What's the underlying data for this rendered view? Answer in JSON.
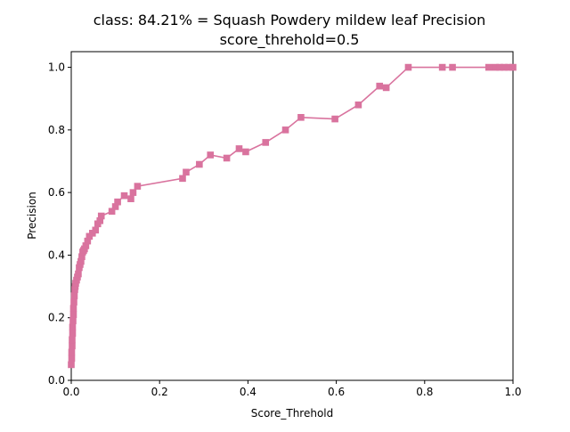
{
  "chart_data": {
    "type": "line",
    "title": "class: 84.21% = Squash Powdery mildew leaf Precision",
    "subtitle": "score_threhold=0.5",
    "xlabel": "Score_Threhold",
    "ylabel": "Precision",
    "xlim": [
      0.0,
      1.0
    ],
    "ylim": [
      0.0,
      1.05
    ],
    "xticks": [
      "0.0",
      "0.2",
      "0.4",
      "0.6",
      "0.8",
      "1.0"
    ],
    "yticks": [
      "0.0",
      "0.2",
      "0.4",
      "0.6",
      "0.8",
      "1.0"
    ],
    "grid": false,
    "legend": false,
    "series": [
      {
        "color": "#d9739e",
        "marker": "square",
        "points": [
          [
            0.0,
            0.05
          ],
          [
            0.001,
            0.07
          ],
          [
            0.001,
            0.09
          ],
          [
            0.002,
            0.11
          ],
          [
            0.002,
            0.13
          ],
          [
            0.003,
            0.15
          ],
          [
            0.003,
            0.17
          ],
          [
            0.004,
            0.19
          ],
          [
            0.005,
            0.21
          ],
          [
            0.005,
            0.23
          ],
          [
            0.006,
            0.25
          ],
          [
            0.007,
            0.27
          ],
          [
            0.008,
            0.29
          ],
          [
            0.009,
            0.3
          ],
          [
            0.01,
            0.31
          ],
          [
            0.012,
            0.32
          ],
          [
            0.014,
            0.33
          ],
          [
            0.016,
            0.34
          ],
          [
            0.018,
            0.36
          ],
          [
            0.02,
            0.37
          ],
          [
            0.022,
            0.38
          ],
          [
            0.024,
            0.395
          ],
          [
            0.026,
            0.41
          ],
          [
            0.028,
            0.415
          ],
          [
            0.03,
            0.42
          ],
          [
            0.033,
            0.43
          ],
          [
            0.037,
            0.445
          ],
          [
            0.041,
            0.46
          ],
          [
            0.048,
            0.47
          ],
          [
            0.055,
            0.48
          ],
          [
            0.06,
            0.5
          ],
          [
            0.065,
            0.51
          ],
          [
            0.068,
            0.525
          ],
          [
            0.092,
            0.54
          ],
          [
            0.1,
            0.555
          ],
          [
            0.105,
            0.57
          ],
          [
            0.12,
            0.59
          ],
          [
            0.135,
            0.58
          ],
          [
            0.14,
            0.6
          ],
          [
            0.15,
            0.62
          ],
          [
            0.252,
            0.645
          ],
          [
            0.26,
            0.665
          ],
          [
            0.29,
            0.69
          ],
          [
            0.315,
            0.72
          ],
          [
            0.352,
            0.71
          ],
          [
            0.38,
            0.74
          ],
          [
            0.395,
            0.73
          ],
          [
            0.44,
            0.76
          ],
          [
            0.485,
            0.8
          ],
          [
            0.52,
            0.84
          ],
          [
            0.597,
            0.835
          ],
          [
            0.65,
            0.88
          ],
          [
            0.698,
            0.94
          ],
          [
            0.713,
            0.935
          ],
          [
            0.763,
            1.0
          ],
          [
            0.84,
            1.0
          ],
          [
            0.863,
            1.0
          ],
          [
            0.945,
            1.0
          ],
          [
            0.96,
            1.0
          ],
          [
            0.97,
            1.0
          ],
          [
            0.98,
            1.0
          ],
          [
            0.99,
            1.0
          ],
          [
            1.0,
            1.0
          ]
        ]
      }
    ]
  }
}
